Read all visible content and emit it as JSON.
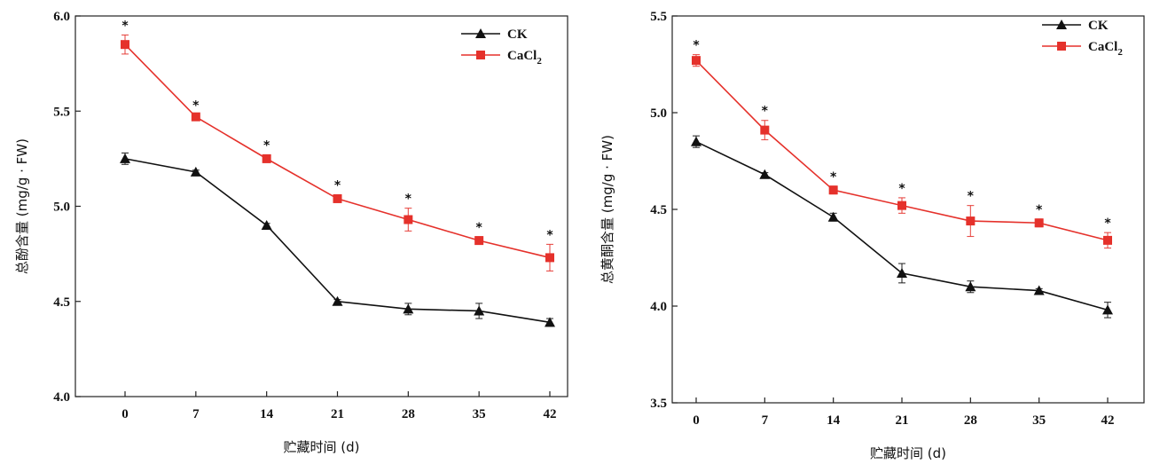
{
  "chart_data": [
    {
      "type": "line",
      "ylabel": "总酚含量 (mg/g · FW)",
      "xlabel": "贮藏时间 (d)",
      "x": [
        0,
        7,
        14,
        21,
        28,
        35,
        42
      ],
      "xticks": [
        "0",
        "7",
        "14",
        "21",
        "28",
        "35",
        "42"
      ],
      "ylim": [
        4.0,
        6.0
      ],
      "yticks": [
        "4.0",
        "4.5",
        "5.0",
        "5.5",
        "6.0"
      ],
      "legend_position": "top-right",
      "series": [
        {
          "name": "CK",
          "color": "#111111",
          "marker": "triangle",
          "values": [
            5.25,
            5.18,
            4.9,
            4.5,
            4.46,
            4.45,
            4.39
          ],
          "errors": [
            0.03,
            0.01,
            0.01,
            0.01,
            0.03,
            0.04,
            0.02
          ]
        },
        {
          "name": "CaCl2",
          "legend_main": "CaCl",
          "legend_sub": "2",
          "color": "#e5312b",
          "marker": "square",
          "values": [
            5.85,
            5.47,
            5.25,
            5.04,
            4.93,
            4.82,
            4.73
          ],
          "errors": [
            0.05,
            0.01,
            0.02,
            0.02,
            0.06,
            0.02,
            0.07
          ],
          "significance": [
            "*",
            "*",
            "*",
            "*",
            "*",
            "*",
            "*"
          ]
        }
      ]
    },
    {
      "type": "line",
      "ylabel": "总黄酮含量 (mg/g · FW)",
      "xlabel": "贮藏时间 (d)",
      "x": [
        0,
        7,
        14,
        21,
        28,
        35,
        42
      ],
      "xticks": [
        "0",
        "7",
        "14",
        "21",
        "28",
        "35",
        "42"
      ],
      "ylim": [
        3.5,
        5.5
      ],
      "yticks": [
        "3.5",
        "4.0",
        "4.5",
        "5.0",
        "5.5"
      ],
      "legend_position": "top-right",
      "series": [
        {
          "name": "CK",
          "color": "#111111",
          "marker": "triangle",
          "values": [
            4.85,
            4.68,
            4.46,
            4.17,
            4.1,
            4.08,
            3.98
          ],
          "errors": [
            0.03,
            0.01,
            0.02,
            0.05,
            0.03,
            0.01,
            0.04
          ]
        },
        {
          "name": "CaCl2",
          "legend_main": "CaCl",
          "legend_sub": "2",
          "color": "#e5312b",
          "marker": "square",
          "values": [
            5.27,
            4.91,
            4.6,
            4.52,
            4.44,
            4.43,
            4.34
          ],
          "errors": [
            0.03,
            0.05,
            0.02,
            0.04,
            0.08,
            0.02,
            0.04
          ],
          "significance": [
            "*",
            "*",
            "*",
            "*",
            "*",
            "*",
            "*"
          ]
        }
      ]
    }
  ]
}
